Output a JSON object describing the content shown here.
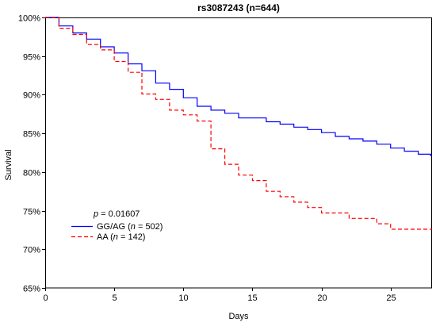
{
  "chart_data": {
    "type": "line",
    "step": true,
    "title": "rs3087243 (n=644)",
    "xlabel": "Days",
    "ylabel": "Survival",
    "xlim": [
      0,
      28
    ],
    "ylim": [
      65,
      100
    ],
    "x_ticks": [
      0,
      5,
      10,
      15,
      20,
      25
    ],
    "x_tick_labels": [
      "0",
      "5",
      "10",
      "15",
      "20",
      "25"
    ],
    "y_ticks": [
      65,
      70,
      75,
      80,
      85,
      90,
      95,
      100
    ],
    "y_tick_labels": [
      "65%",
      "70%",
      "75%",
      "80%",
      "85%",
      "90%",
      "95%",
      "100%"
    ],
    "grid": false,
    "legend_position": "lower-left",
    "annotations": [
      {
        "text": "p = 0.01607"
      }
    ],
    "series": [
      {
        "name": "GG/AG (n = 502)",
        "color": "#0000ff",
        "line_style": "solid",
        "x": [
          0,
          1,
          2,
          3,
          4,
          5,
          6,
          7,
          8,
          9,
          10,
          11,
          12,
          13,
          14,
          16,
          17,
          18,
          19,
          20,
          21,
          22,
          23,
          24,
          25,
          26,
          27,
          27.9
        ],
        "y": [
          100,
          98.9,
          98.0,
          97.2,
          96.2,
          95.4,
          94.0,
          93.1,
          91.5,
          90.7,
          89.6,
          88.5,
          88.0,
          87.6,
          87.0,
          86.5,
          86.2,
          85.8,
          85.5,
          85.1,
          84.6,
          84.3,
          84.0,
          83.6,
          83.1,
          82.7,
          82.3,
          82.1
        ]
      },
      {
        "name": "AA (n = 142)",
        "color": "#ff0000",
        "line_style": "dashed",
        "x": [
          0,
          1,
          2,
          3,
          4,
          5,
          6,
          7,
          8,
          9,
          10,
          11,
          12,
          13,
          14,
          15,
          16,
          17,
          18,
          19,
          20,
          22,
          24,
          25
        ],
        "y": [
          100,
          98.6,
          97.8,
          96.5,
          95.8,
          94.3,
          92.9,
          90.1,
          89.4,
          88.0,
          87.4,
          86.6,
          83.0,
          81.0,
          79.6,
          78.9,
          77.5,
          76.8,
          76.1,
          75.4,
          74.7,
          74.0,
          73.3,
          72.6
        ]
      }
    ]
  }
}
